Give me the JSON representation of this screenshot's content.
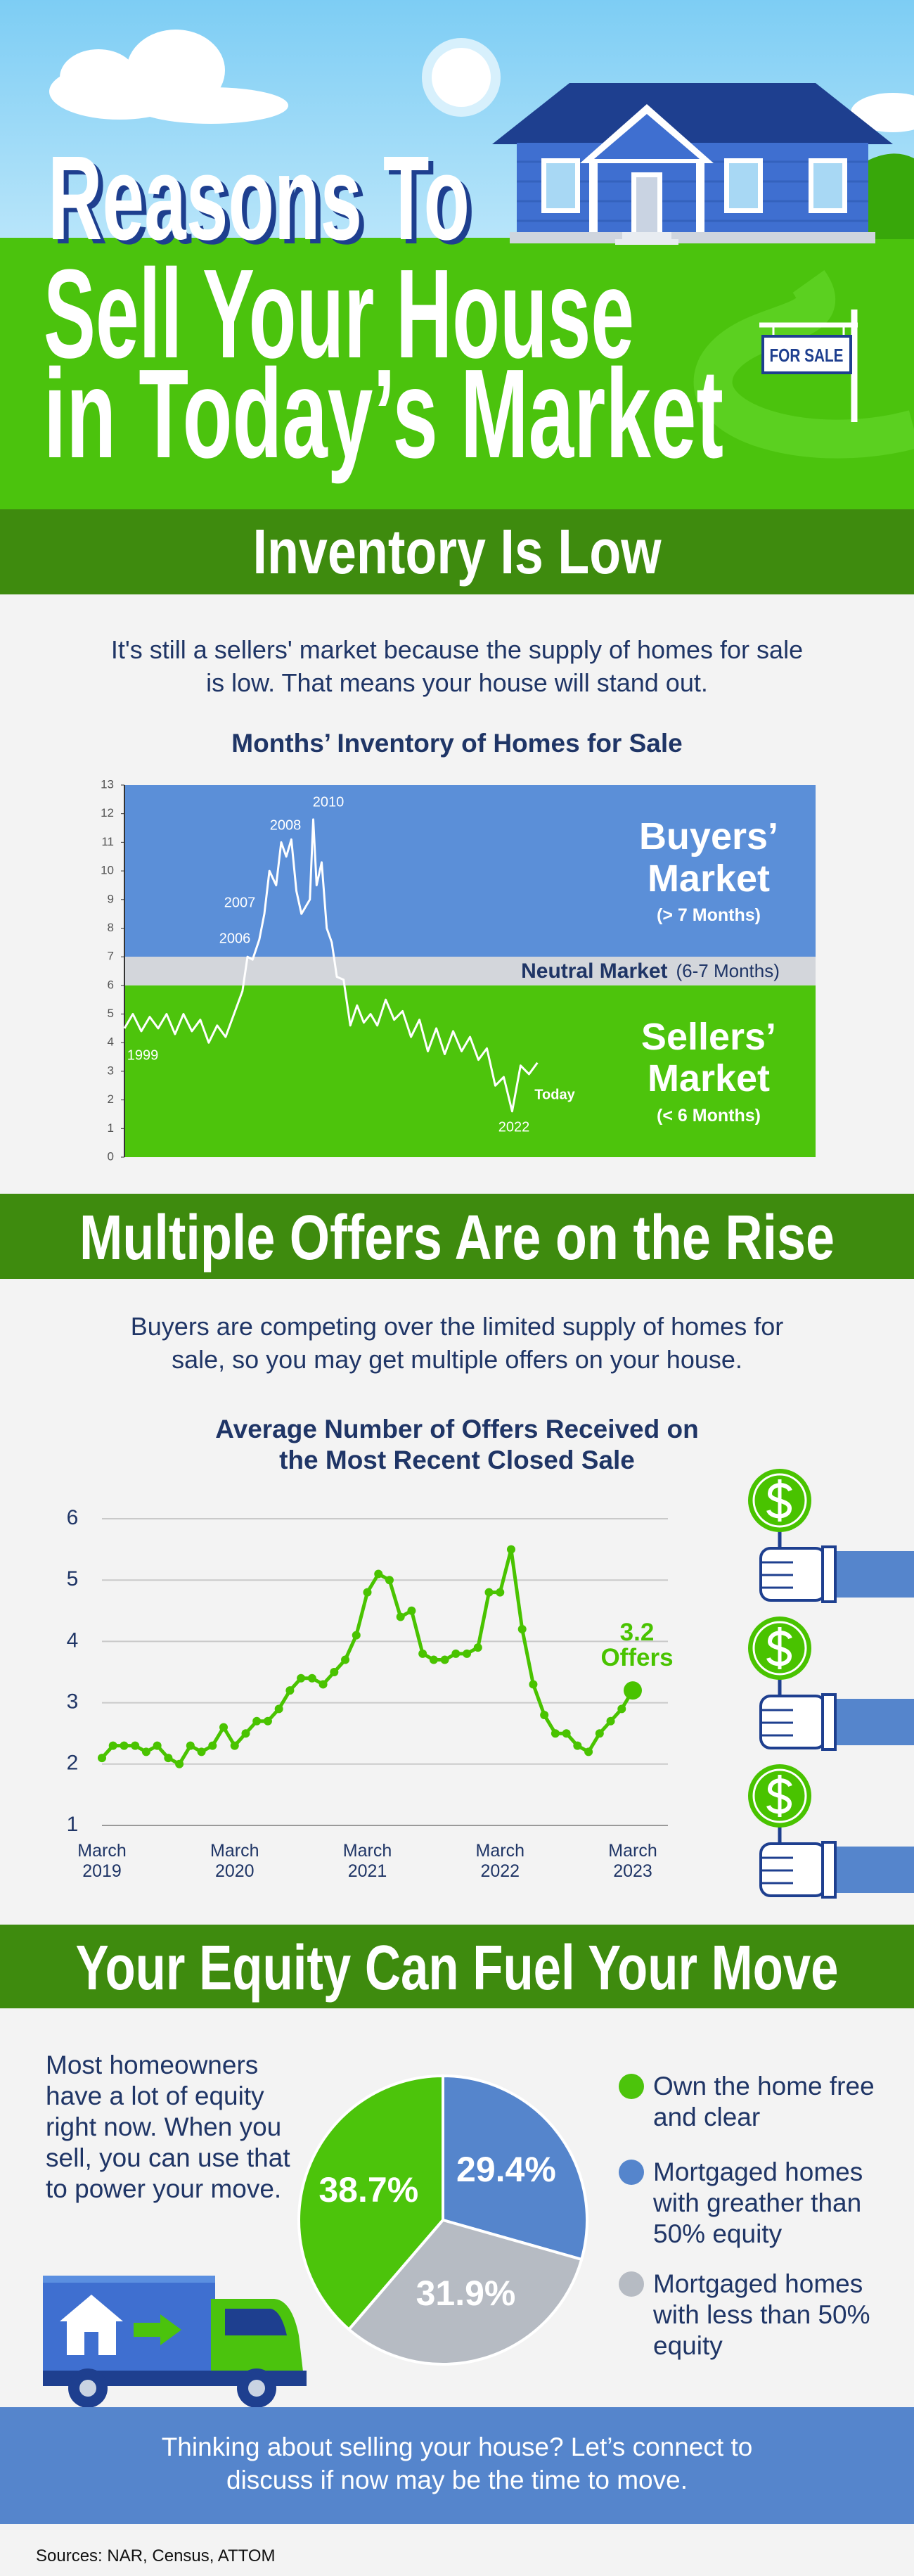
{
  "header": {
    "title_lines": [
      "Reasons To",
      "Sell Your House",
      "in Today’s Market"
    ],
    "sign": "FOR SALE"
  },
  "sections": [
    {
      "heading": "Inventory Is Low",
      "text": "It's still a sellers' market because the supply of homes for sale is low. That means your house will stand out."
    },
    {
      "heading": "Multiple Offers Are on the Rise",
      "text": "Buyers are competing over the limited supply of homes for sale, so you may get multiple offers on your house."
    },
    {
      "heading": "Your Equity Can Fuel Your Move",
      "text": "Most homeowners have a lot of equity right now. When you sell, you can use that to power your move."
    }
  ],
  "chart_data": [
    {
      "type": "line",
      "title": "Months’ Inventory of Homes for Sale",
      "x": [
        1999,
        1999.5,
        2000,
        2000.5,
        2001,
        2001.5,
        2002,
        2002.5,
        2003,
        2003.5,
        2004,
        2004.5,
        2005,
        2005.5,
        2006,
        2006.3,
        2006.6,
        2007,
        2007.3,
        2007.6,
        2008,
        2008.3,
        2008.6,
        2008.9,
        2009.2,
        2009.5,
        2010,
        2010.2,
        2010.4,
        2010.7,
        2011,
        2011.3,
        2011.6,
        2012,
        2012.4,
        2012.8,
        2013.2,
        2013.6,
        2014,
        2014.5,
        2015,
        2015.5,
        2016,
        2016.5,
        2017,
        2017.5,
        2018,
        2018.5,
        2019,
        2019.5,
        2020,
        2020.5,
        2021,
        2021.5,
        2022,
        2022.5,
        2023,
        2023.5
      ],
      "values": [
        4.5,
        5.0,
        4.4,
        4.9,
        4.5,
        5.0,
        4.3,
        5.0,
        4.4,
        4.8,
        4.0,
        4.6,
        4.2,
        5.0,
        5.8,
        7.0,
        6.9,
        7.6,
        8.5,
        10.0,
        9.5,
        11.0,
        10.5,
        11.1,
        9.3,
        8.5,
        9.0,
        11.8,
        9.5,
        10.3,
        8.0,
        7.5,
        6.3,
        6.2,
        4.6,
        5.3,
        4.7,
        5.0,
        4.6,
        5.5,
        4.8,
        5.1,
        4.2,
        4.8,
        3.7,
        4.5,
        3.6,
        4.4,
        3.7,
        4.2,
        3.4,
        3.8,
        2.5,
        2.8,
        1.6,
        3.2,
        2.9,
        3.3
      ],
      "color": "#ffffff",
      "xlim": [
        1999,
        2040
      ],
      "ylim": [
        0,
        13
      ],
      "yticks": [
        0,
        1,
        2,
        3,
        4,
        5,
        6,
        7,
        8,
        9,
        10,
        11,
        12,
        13
      ],
      "grid": false,
      "bands": [
        {
          "name": "Buyers’ Market",
          "detail": "(> 7 Months)",
          "range": [
            7,
            13
          ],
          "color": "#5b8fd8"
        },
        {
          "name": "Neutral Market",
          "detail": "(6-7 Months)",
          "range": [
            6,
            7
          ],
          "color": "#d3d6db"
        },
        {
          "name": "Sellers’ Market",
          "detail": "(< 6 Months)",
          "range": [
            0,
            6
          ],
          "color": "#4dc40c"
        }
      ],
      "annotations": [
        "1999",
        "2006",
        "2007",
        "2008",
        "2010",
        "2022",
        "Today"
      ]
    },
    {
      "type": "line",
      "title": "Average Number of Offers Received on the Most Recent Closed Sale",
      "categories": [
        "March\n2019",
        null,
        null,
        null,
        null,
        null,
        null,
        null,
        null,
        null,
        null,
        null,
        "March\n2020",
        null,
        null,
        null,
        null,
        null,
        null,
        null,
        null,
        null,
        null,
        null,
        "March\n2021",
        null,
        null,
        null,
        null,
        null,
        null,
        null,
        null,
        null,
        null,
        null,
        "March\n2022",
        null,
        null,
        null,
        null,
        null,
        null,
        null,
        null,
        null,
        null,
        null,
        "March\n2023"
      ],
      "values": [
        2.1,
        2.3,
        2.3,
        2.3,
        2.2,
        2.3,
        2.1,
        2.0,
        2.3,
        2.2,
        2.3,
        2.6,
        2.3,
        2.5,
        2.7,
        2.7,
        2.9,
        3.2,
        3.4,
        3.4,
        3.3,
        3.5,
        3.7,
        4.1,
        4.8,
        5.1,
        5.0,
        4.4,
        4.5,
        3.8,
        3.7,
        3.7,
        3.8,
        3.8,
        3.9,
        4.8,
        4.8,
        5.5,
        4.2,
        3.3,
        2.8,
        2.5,
        2.5,
        2.3,
        2.2,
        2.5,
        2.7,
        2.9,
        3.2
      ],
      "color": "#49c300",
      "ylim": [
        1,
        6
      ],
      "yticks": [
        1,
        2,
        3,
        4,
        5,
        6
      ],
      "grid": true,
      "callout": "3.2\nOffers"
    },
    {
      "type": "pie",
      "categories": [
        "Own the home free and clear",
        "Mortgaged homes with greather than 50% equity",
        "Mortgaged homes with less than 50% equity"
      ],
      "values": [
        38.7,
        29.4,
        31.9
      ],
      "value_labels": [
        "38.7%",
        "29.4%",
        "31.9%"
      ],
      "colors": [
        "#4cc40b",
        "#5585cc",
        "#b6bbc3"
      ]
    }
  ],
  "cta": "Thinking about selling your house? Let’s connect to discuss if now may be the time to move.",
  "sources": "Sources: NAR, Census, ATTOM"
}
